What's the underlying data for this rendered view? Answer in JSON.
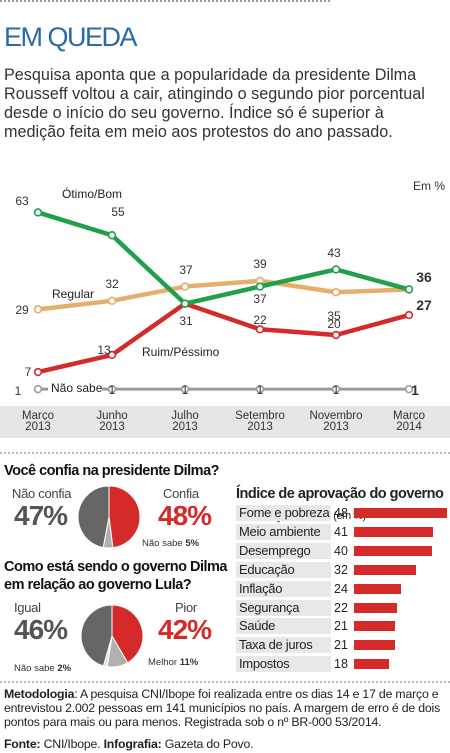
{
  "header": {
    "title": "EM QUEDA",
    "intro": "Pesquisa aponta que a popularidade da presidente Dilma Rousseff voltou a cair, atingindo o segundo pior porcentual desde o início do seu governo. Índice só é superior à medição feita em meio aos protestos do ano passado."
  },
  "colors": {
    "green": "#1fa049",
    "orange": "#e6ad6b",
    "red": "#d42a2a",
    "gray": "#9a9a9a",
    "darkgray": "#555555",
    "axisband": "#e6e6e6",
    "title": "#2a6aa8"
  },
  "chart_data": [
    {
      "type": "line",
      "unit_label": "Em %",
      "categories": [
        "Março 2013",
        "Junho 2013",
        "Julho 2013",
        "Setembro 2013",
        "Novembro 2013",
        "Março 2014"
      ],
      "ylim": [
        0,
        65
      ],
      "series": [
        {
          "name": "Ótimo/Bom",
          "values": [
            63,
            55,
            31,
            37,
            43,
            36
          ],
          "color": "#1fa049"
        },
        {
          "name": "Regular",
          "values": [
            29,
            32,
            37,
            39,
            35,
            36
          ],
          "color": "#e6ad6b"
        },
        {
          "name": "Ruim/Péssimo",
          "values": [
            7,
            13,
            31,
            22,
            20,
            27
          ],
          "color": "#d42a2a"
        },
        {
          "name": "Não sabe",
          "values": [
            1,
            1,
            1,
            1,
            1,
            1
          ],
          "color": "#9a9a9a"
        }
      ]
    },
    {
      "type": "pie",
      "title": "Você confia na presidente Dilma?",
      "slices": [
        {
          "name": "Confia",
          "value": 48,
          "label": "48%",
          "color": "#d42a2a"
        },
        {
          "name": "Não sabe",
          "value": 5,
          "label": "5%",
          "color": "#b0b0b0"
        },
        {
          "name": "Não confia",
          "value": 47,
          "label": "47%",
          "color": "#666666"
        }
      ]
    },
    {
      "type": "pie",
      "title": "Como está sendo o governo Dilma em relação ao governo Lula?",
      "slices": [
        {
          "name": "Pior",
          "value": 42,
          "label": "42%",
          "color": "#d42a2a"
        },
        {
          "name": "Melhor",
          "value": 11,
          "label": "11%",
          "color": "#b0b0b0"
        },
        {
          "name": "Não sabe",
          "value": 2,
          "label": "2%",
          "color": "#e0e0e0"
        },
        {
          "name": "Igual",
          "value": 46,
          "label": "46%",
          "color": "#666666"
        }
      ]
    },
    {
      "type": "bar",
      "title": "Índice de aprovação do governo Dilma por área",
      "unit": "(em %)",
      "categories": [
        "Fome e pobreza",
        "Meio ambiente",
        "Desemprego",
        "Educação",
        "Inflação",
        "Segurança",
        "Saúde",
        "Taxa de juros",
        "Impostos"
      ],
      "values": [
        48,
        41,
        40,
        32,
        24,
        22,
        21,
        21,
        18
      ],
      "color": "#d42a2a"
    }
  ],
  "pies": {
    "p1": {
      "title": "Você confia na presidente Dilma?",
      "left_label": "Não confia",
      "left_pct": "47%",
      "right_label": "Confia",
      "right_pct": "48%",
      "ns_label": "Não sabe",
      "ns_pct": "5%"
    },
    "p2": {
      "title": "Como está sendo o governo Dilma em relação ao governo Lula?",
      "left_label": "Igual",
      "left_pct": "46%",
      "right_label": "Pior",
      "right_pct": "42%",
      "ns_label": "Não sabe",
      "ns_pct": "2%",
      "best_label": "Melhor",
      "best_pct": "11%"
    }
  },
  "bars": {
    "title": "Índice de aprovação do governo Dilma por área",
    "unit": "(em %)"
  },
  "footer": {
    "method_label": "Metodologia",
    "method_text": ": A pesquisa CNI/Ibope foi realizada entre os dias 14 e 17 de março e entrevistou 2.002 pessoas em 141 municípios no país. A margem de erro é de dois pontos para mais ou para menos. Registrada sob o nº BR-000 53/2014.",
    "source_label": "Fonte:",
    "source_text": " CNI/Ibope. ",
    "info_label": "Infografia:",
    "info_text": " Gazeta do Povo."
  }
}
